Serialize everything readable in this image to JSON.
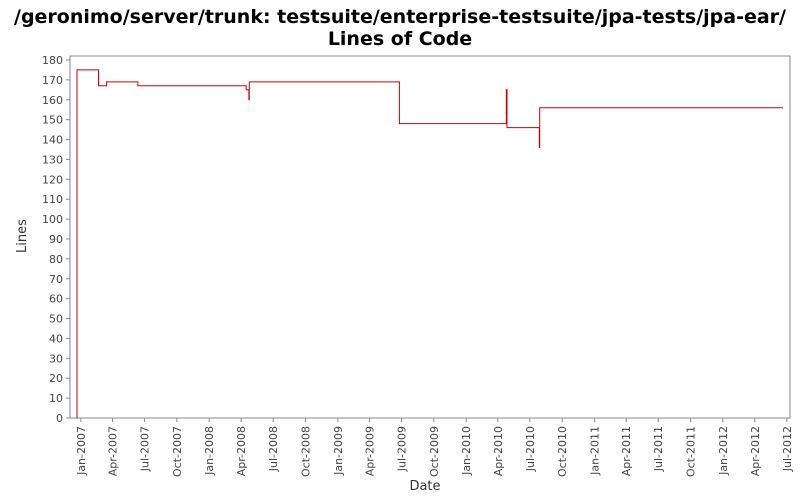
{
  "chart_data": {
    "type": "line",
    "title": "/geronimo/server/trunk: testsuite/enterprise-testsuite/jpa-tests/jpa-ear/",
    "subtitle": "Lines of Code",
    "xlabel": "Date",
    "ylabel": "Lines",
    "ylim": [
      0,
      182
    ],
    "xlim": [
      "2006-12-01",
      "2012-07-10"
    ],
    "grid": false,
    "legend": "none",
    "y_ticks": [
      0,
      10,
      20,
      30,
      40,
      50,
      60,
      70,
      80,
      90,
      100,
      110,
      120,
      130,
      140,
      150,
      160,
      170,
      180
    ],
    "x_ticks": [
      {
        "date": "2007-01-01",
        "label": "Jan-2007"
      },
      {
        "date": "2007-04-01",
        "label": "Apr-2007"
      },
      {
        "date": "2007-07-01",
        "label": "Jul-2007"
      },
      {
        "date": "2007-10-01",
        "label": "Oct-2007"
      },
      {
        "date": "2008-01-01",
        "label": "Jan-2008"
      },
      {
        "date": "2008-04-01",
        "label": "Apr-2008"
      },
      {
        "date": "2008-07-01",
        "label": "Jul-2008"
      },
      {
        "date": "2008-10-01",
        "label": "Oct-2008"
      },
      {
        "date": "2009-01-01",
        "label": "Jan-2009"
      },
      {
        "date": "2009-04-01",
        "label": "Apr-2009"
      },
      {
        "date": "2009-07-01",
        "label": "Jul-2009"
      },
      {
        "date": "2009-10-01",
        "label": "Oct-2009"
      },
      {
        "date": "2010-01-01",
        "label": "Jan-2010"
      },
      {
        "date": "2010-04-01",
        "label": "Apr-2010"
      },
      {
        "date": "2010-07-01",
        "label": "Jul-2010"
      },
      {
        "date": "2010-10-01",
        "label": "Oct-2010"
      },
      {
        "date": "2011-01-01",
        "label": "Jan-2011"
      },
      {
        "date": "2011-04-01",
        "label": "Apr-2011"
      },
      {
        "date": "2011-07-01",
        "label": "Jul-2011"
      },
      {
        "date": "2011-10-01",
        "label": "Oct-2011"
      },
      {
        "date": "2012-01-01",
        "label": "Jan-2012"
      },
      {
        "date": "2012-04-01",
        "label": "Apr-2012"
      },
      {
        "date": "2012-07-01",
        "label": "Jul-2012"
      }
    ],
    "series": [
      {
        "color": "#cc0000",
        "points": [
          [
            "2006-12-20",
            0
          ],
          [
            "2006-12-21",
            175
          ],
          [
            "2007-02-20",
            167
          ],
          [
            "2007-03-15",
            169
          ],
          [
            "2007-06-12",
            167
          ],
          [
            "2008-04-15",
            165
          ],
          [
            "2008-04-23",
            160
          ],
          [
            "2008-04-24",
            169
          ],
          [
            "2009-06-25",
            148
          ],
          [
            "2010-04-25",
            165
          ],
          [
            "2010-04-27",
            146
          ],
          [
            "2010-07-28",
            136
          ],
          [
            "2010-07-29",
            156
          ],
          [
            "2012-06-20",
            156
          ]
        ]
      }
    ]
  }
}
